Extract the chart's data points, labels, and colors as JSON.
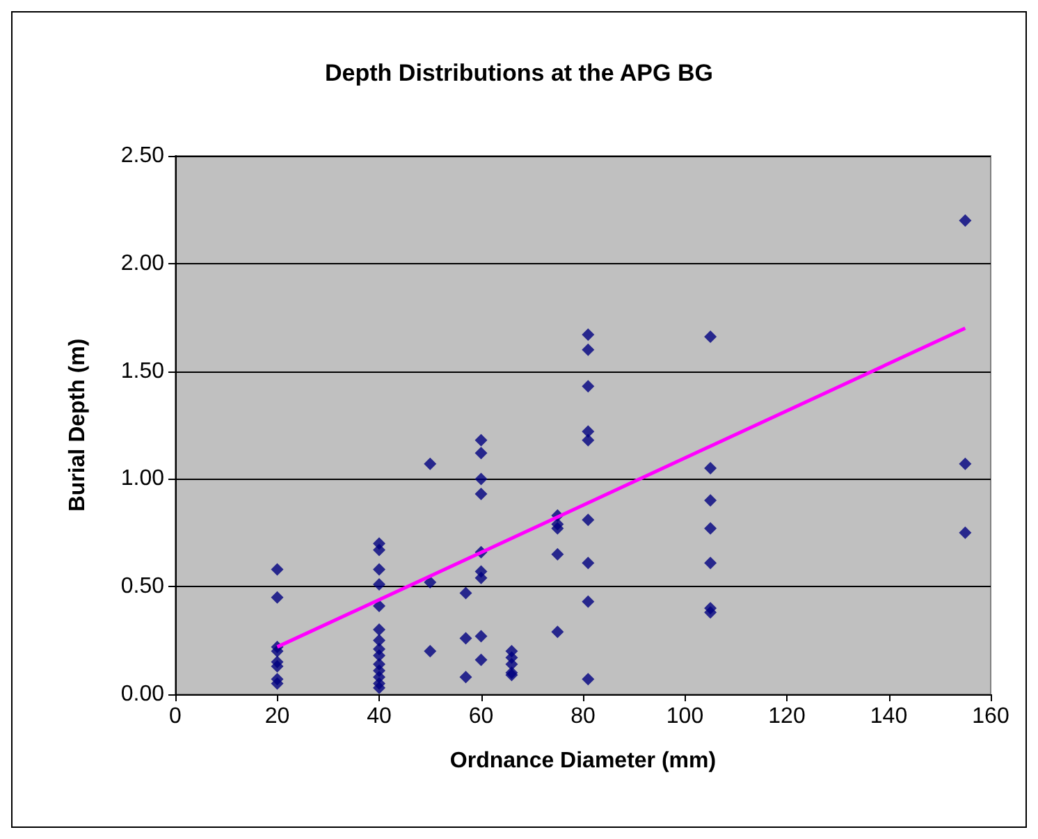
{
  "chart_data": {
    "type": "scatter",
    "title": "Depth Distributions at the APG BG",
    "xlabel": "Ordnance Diameter (mm)",
    "ylabel": "Burial Depth (m)",
    "xlim": [
      0,
      160
    ],
    "xticks": [
      0,
      20,
      40,
      60,
      80,
      100,
      120,
      140,
      160
    ],
    "ylim": [
      0,
      2.5
    ],
    "yticks": [
      {
        "value": 0,
        "label": "0.00"
      },
      {
        "value": 0.5,
        "label": "0.50"
      },
      {
        "value": 1,
        "label": "1.00"
      },
      {
        "value": 1.5,
        "label": "1.50"
      },
      {
        "value": 2,
        "label": "2.00"
      },
      {
        "value": 2.5,
        "label": "2.50"
      }
    ],
    "grid": "y",
    "marker": "diamond",
    "series": [
      {
        "color": "#000080",
        "x": [
          20,
          20,
          20,
          20,
          20,
          20,
          20,
          20,
          40,
          40,
          40,
          40,
          40,
          40,
          40,
          40,
          40,
          40,
          40,
          40,
          40,
          40,
          50,
          50,
          50,
          57,
          57,
          57,
          60,
          60,
          60,
          60,
          60,
          60,
          60,
          60,
          60,
          66,
          66,
          66,
          66,
          66,
          75,
          75,
          75,
          75,
          75,
          81,
          81,
          81,
          81,
          81,
          81,
          81,
          81,
          81,
          105,
          105,
          105,
          105,
          105,
          105,
          105,
          155,
          155,
          155
        ],
        "values": [
          0.58,
          0.45,
          0.22,
          0.2,
          0.15,
          0.13,
          0.07,
          0.05,
          0.7,
          0.67,
          0.58,
          0.51,
          0.41,
          0.3,
          0.25,
          0.21,
          0.18,
          0.14,
          0.11,
          0.08,
          0.05,
          0.03,
          1.07,
          0.52,
          0.2,
          0.47,
          0.26,
          0.08,
          1.18,
          1.12,
          1,
          0.93,
          0.66,
          0.57,
          0.54,
          0.27,
          0.16,
          0.2,
          0.17,
          0.14,
          0.1,
          0.09,
          0.83,
          0.79,
          0.77,
          0.65,
          0.29,
          1.67,
          1.6,
          1.43,
          1.22,
          1.18,
          0.81,
          0.61,
          0.43,
          0.07,
          1.66,
          1.05,
          0.9,
          0.77,
          0.61,
          0.4,
          0.38,
          2.2,
          1.07,
          0.75
        ]
      },
      {
        "type": "line",
        "color": "#ff00ff",
        "marker": "none",
        "x": [
          20,
          155
        ],
        "values": [
          0.22,
          1.7
        ]
      }
    ]
  }
}
